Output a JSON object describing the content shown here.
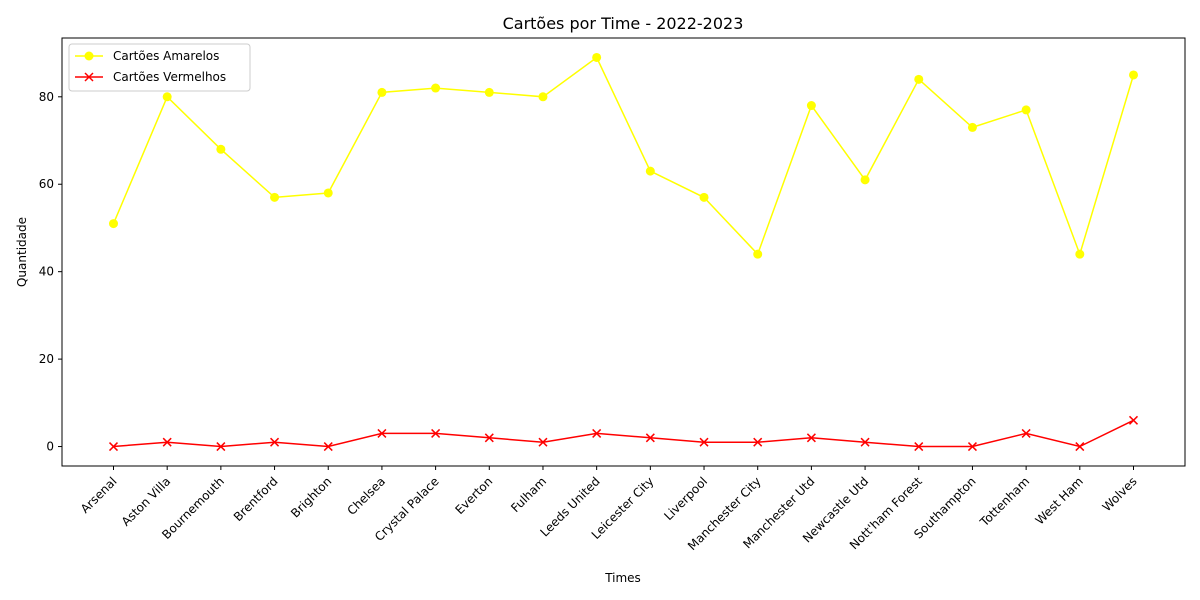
{
  "chart_data": {
    "type": "line",
    "title": "Cartões por Time - 2022-2023",
    "xlabel": "Times",
    "ylabel": "Quantidade",
    "categories": [
      "Arsenal",
      "Aston Villa",
      "Bournemouth",
      "Brentford",
      "Brighton",
      "Chelsea",
      "Crystal Palace",
      "Everton",
      "Fulham",
      "Leeds United",
      "Leicester City",
      "Liverpool",
      "Manchester City",
      "Manchester Utd",
      "Newcastle Utd",
      "Nott'ham Forest",
      "Southampton",
      "Tottenham",
      "West Ham",
      "Wolves"
    ],
    "series": [
      {
        "name": "Cartões Amarelos",
        "color": "#ffff00",
        "marker": "circle",
        "values": [
          51,
          80,
          68,
          57,
          58,
          81,
          82,
          81,
          80,
          89,
          63,
          57,
          44,
          78,
          61,
          84,
          73,
          77,
          44,
          85
        ]
      },
      {
        "name": "Cartões Vermelhos",
        "color": "#ff0000",
        "marker": "x",
        "values": [
          0,
          1,
          0,
          1,
          0,
          3,
          3,
          2,
          1,
          3,
          2,
          1,
          1,
          2,
          1,
          0,
          0,
          3,
          0,
          6
        ]
      }
    ],
    "yticks": [
      0,
      20,
      40,
      60,
      80
    ],
    "ylim": [
      -4.45,
      93.45
    ],
    "grid": false,
    "legend": "upper left"
  }
}
